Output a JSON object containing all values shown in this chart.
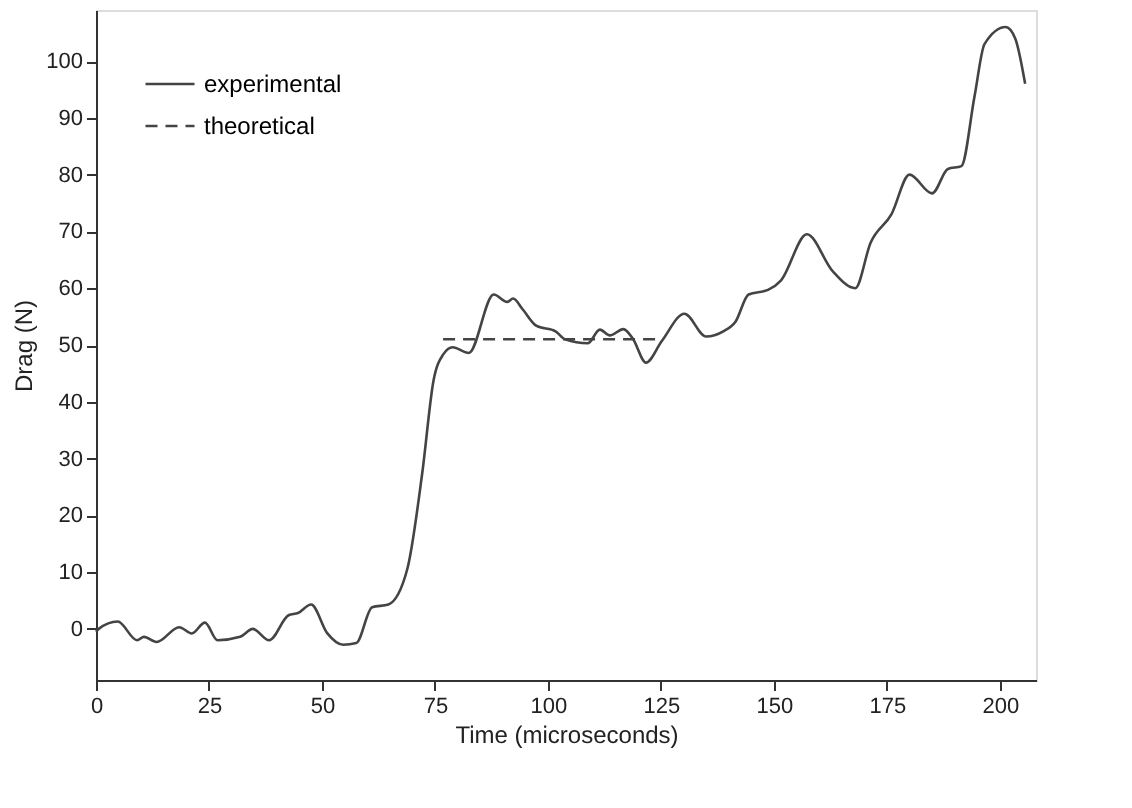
{
  "chart_data": {
    "type": "line",
    "xlabel": "Time (microseconds)",
    "ylabel": "Drag (N)",
    "xlim": [
      0,
      208
    ],
    "ylim": [
      -9,
      109
    ],
    "xticks": [
      0,
      25,
      50,
      75,
      100,
      125,
      150,
      175,
      200
    ],
    "yticks": [
      0,
      10,
      20,
      30,
      40,
      50,
      60,
      70,
      80,
      90,
      100
    ],
    "grid": false,
    "legend": "top left",
    "series": [
      {
        "name": "experimental",
        "color": "#444444",
        "line_style": "solid",
        "x": [
          0,
          0.6,
          4.8,
          9.1,
          10.6,
          13.4,
          18.4,
          21.2,
          24.1,
          26.9,
          31.9,
          34.7,
          38.3,
          42.6,
          44.7,
          47.6,
          51.2,
          54.7,
          57.6,
          61.1,
          64.7,
          68.9,
          72.2,
          74.7,
          76.8,
          78.9,
          82.5,
          88,
          91,
          92.3,
          94.4,
          97.4,
          101.7,
          103.8,
          108.8,
          111.5,
          113.7,
          116.7,
          118.8,
          121.7,
          125.2,
          130.2,
          135,
          138.8,
          141.5,
          144.4,
          148.7,
          151.6,
          157.3,
          163,
          168,
          171.4,
          176,
          180,
          185,
          188.5,
          191.5,
          194.4,
          196.6,
          201.3,
          203.4,
          205.6
        ],
        "values": [
          -0.5,
          0,
          1.3,
          -2,
          -1.4,
          -2.3,
          0.3,
          -0.8,
          1.1,
          -2,
          -1.4,
          0,
          -2,
          2.4,
          2.8,
          4.3,
          -0.8,
          -2.8,
          -2.5,
          3.8,
          4.3,
          10.6,
          27.5,
          43.8,
          48.3,
          49.6,
          48.6,
          58.9,
          57.6,
          58.2,
          56.3,
          53.4,
          52.4,
          51,
          50.3,
          52.7,
          51.7,
          52.8,
          51.1,
          46.9,
          50.7,
          55.5,
          51.5,
          52.4,
          54.1,
          58.9,
          59.7,
          61.4,
          69.5,
          63,
          60,
          68,
          73,
          80,
          76.7,
          81,
          81.5,
          93.8,
          103,
          106,
          104,
          96
        ]
      },
      {
        "name": "theoretical",
        "color": "#444444",
        "line_style": "dashed",
        "x": [
          76.8,
          125.2
        ],
        "values": [
          51,
          51
        ]
      }
    ]
  }
}
